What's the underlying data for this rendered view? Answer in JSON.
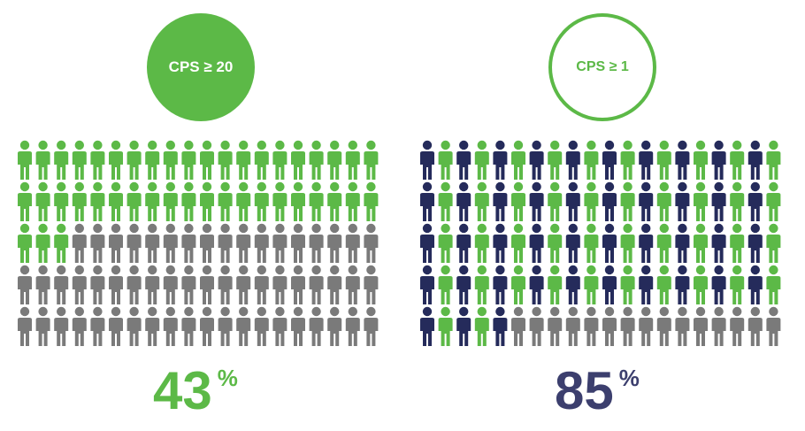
{
  "chart_data": [
    {
      "type": "pictogram",
      "badge_label": "CPS ≥ 20",
      "value": 43,
      "value_text": "43",
      "unit": "%",
      "total_icons": 100,
      "colors": {
        "highlight": "#5cb947",
        "rest": "#7a7a7a"
      }
    },
    {
      "type": "pictogram",
      "badge_label": "CPS ≥ 1",
      "value": 85,
      "value_text": "85",
      "unit": "%",
      "total_icons": 100,
      "colors": {
        "highlight_a": "#5cb947",
        "highlight_b": "#252b5b",
        "rest": "#7a7a7a"
      }
    }
  ]
}
